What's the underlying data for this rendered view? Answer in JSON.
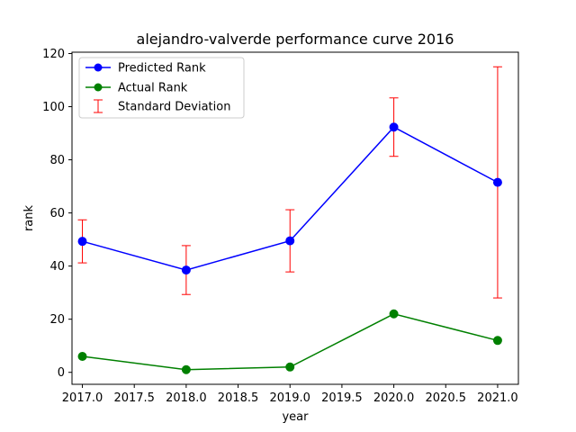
{
  "chart_data": {
    "type": "line",
    "title": "alejandro-valverde performance curve 2016",
    "xlabel": "year",
    "ylabel": "rank",
    "xlim": [
      2016.9,
      2021.2
    ],
    "ylim": [
      -4.5,
      120.5
    ],
    "xticks": [
      "2017.0",
      "2017.5",
      "2018.0",
      "2018.5",
      "2019.0",
      "2019.5",
      "2020.0",
      "2020.5",
      "2021.0"
    ],
    "xtick_values": [
      2017.0,
      2017.5,
      2018.0,
      2018.5,
      2019.0,
      2019.5,
      2020.0,
      2020.5,
      2021.0
    ],
    "yticks": [
      "0",
      "20",
      "40",
      "60",
      "80",
      "100",
      "120"
    ],
    "ytick_values": [
      0,
      20,
      40,
      60,
      80,
      100,
      120
    ],
    "grid": false,
    "legend": {
      "placement": "top-left",
      "entries": [
        "Predicted Rank",
        "Actual Rank",
        "Standard Deviation"
      ]
    },
    "x": [
      2017,
      2018,
      2019,
      2020,
      2021
    ],
    "series": [
      {
        "name": "Predicted Rank",
        "color": "#0000ff",
        "values": [
          49.3,
          38.5,
          49.5,
          92.3,
          71.5
        ]
      },
      {
        "name": "Actual Rank",
        "color": "#008000",
        "values": [
          6,
          1,
          2,
          22,
          12
        ]
      }
    ],
    "error_bars": {
      "name": "Standard Deviation",
      "color": "#ff0000",
      "lower": [
        41.2,
        29.3,
        37.8,
        81.3,
        28.0
      ],
      "upper": [
        57.4,
        47.7,
        61.2,
        103.3,
        115.0
      ]
    }
  }
}
